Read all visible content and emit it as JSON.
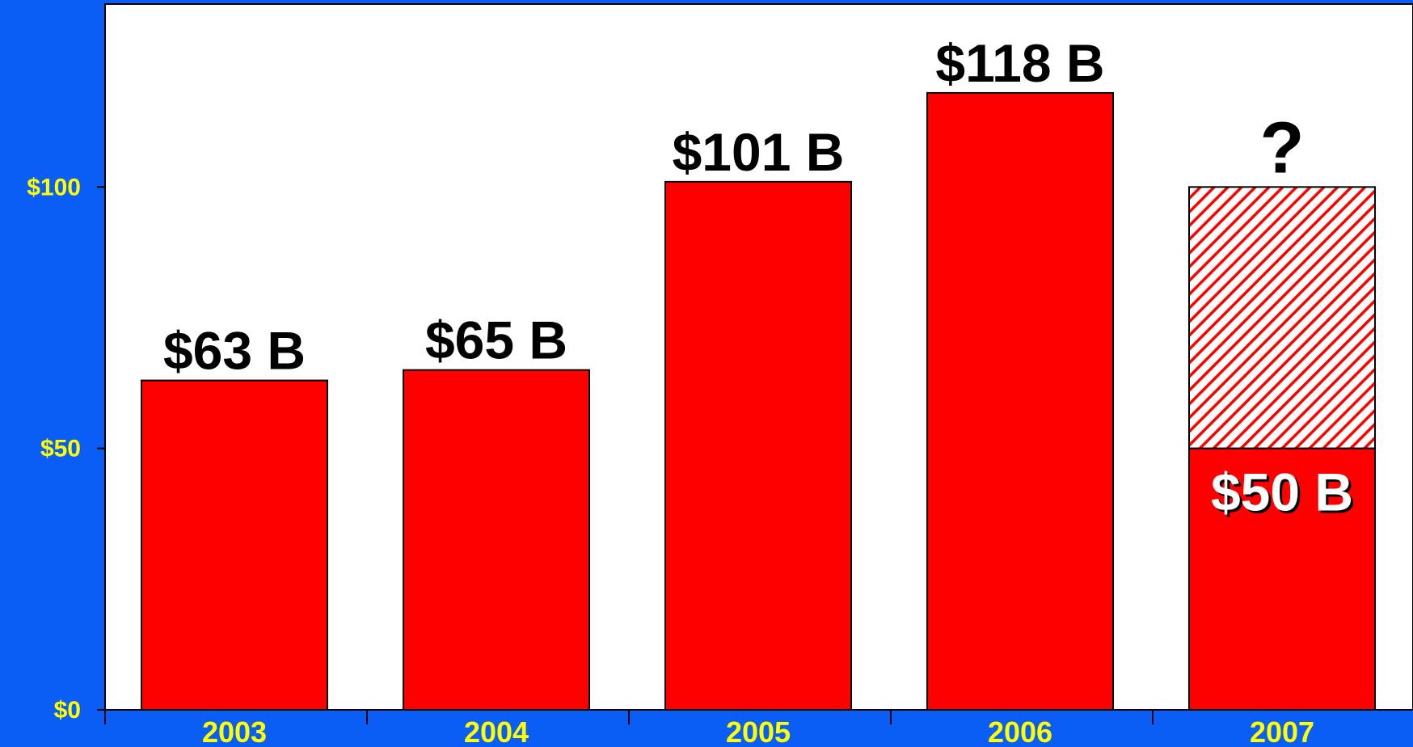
{
  "colors": {
    "background": "#0A5EF5",
    "plot_area": "#FFFFFF",
    "bar": "#FF0000",
    "tick_label": "#FFFF00",
    "data_label": "#000000",
    "inside_label": "#FFFFFF"
  },
  "chart_data": {
    "type": "bar",
    "title": "",
    "xlabel": "",
    "ylabel": "",
    "ylim": [
      0,
      135
    ],
    "y_ticks": [
      0,
      50,
      100
    ],
    "y_tick_labels": [
      "$0",
      "$50",
      "$100"
    ],
    "categories": [
      "2003",
      "2004",
      "2005",
      "2006",
      "2007"
    ],
    "values": [
      63,
      65,
      101,
      118,
      50
    ],
    "data_labels": [
      "$63 B",
      "$65 B",
      "$101 B",
      "$118 B",
      "$50 B"
    ],
    "projected": {
      "category": "2007",
      "value": 100,
      "fill": "hatched",
      "label": "?"
    },
    "grid": false,
    "legend": "none"
  }
}
